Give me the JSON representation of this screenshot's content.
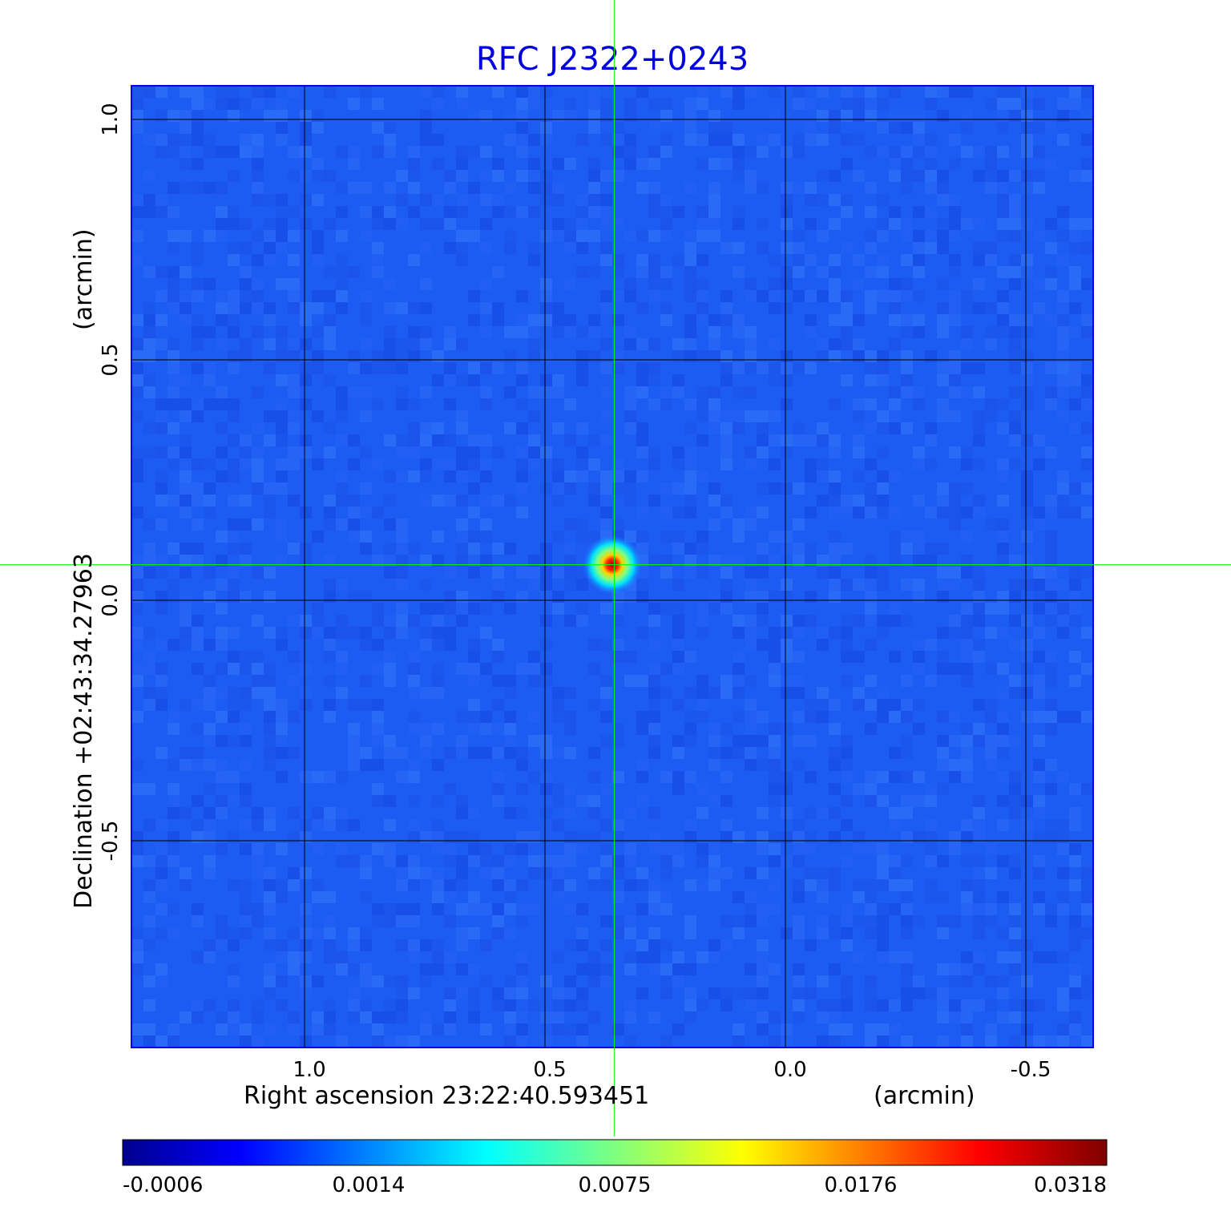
{
  "chart_data": {
    "type": "heatmap",
    "title": "RFC J2322+0243",
    "xlabel": "Right ascension  23:22:40.593451",
    "xunit": "(arcmin)",
    "ylabel": "Declination  +02:43:34.27963",
    "yunit": "(arcmin)",
    "x_ticks": [
      "1.0",
      "0.5",
      "0.0",
      "-0.5"
    ],
    "x_tick_values": [
      1.0,
      0.5,
      0.0,
      -0.5
    ],
    "y_ticks": [
      "1.0",
      "0.5",
      "0.0",
      "-0.5"
    ],
    "y_tick_values": [
      1.0,
      0.5,
      0.0,
      -0.5
    ],
    "xlim": [
      1.36,
      -0.64
    ],
    "ylim": [
      -0.93,
      1.07
    ],
    "grid": true,
    "colormap": "jet",
    "colorbar_ticks": [
      "-0.0006",
      "0.0014",
      "0.0075",
      "0.0176",
      "0.0318"
    ],
    "colorbar_range": [
      -0.0006,
      0.0318
    ],
    "source": {
      "x": 0.36,
      "y": 0.074,
      "peak": 0.0318
    },
    "crosshair": {
      "x": 0.356,
      "y": 0.074,
      "color": "#00ff00"
    },
    "grid_color": "#000000"
  }
}
